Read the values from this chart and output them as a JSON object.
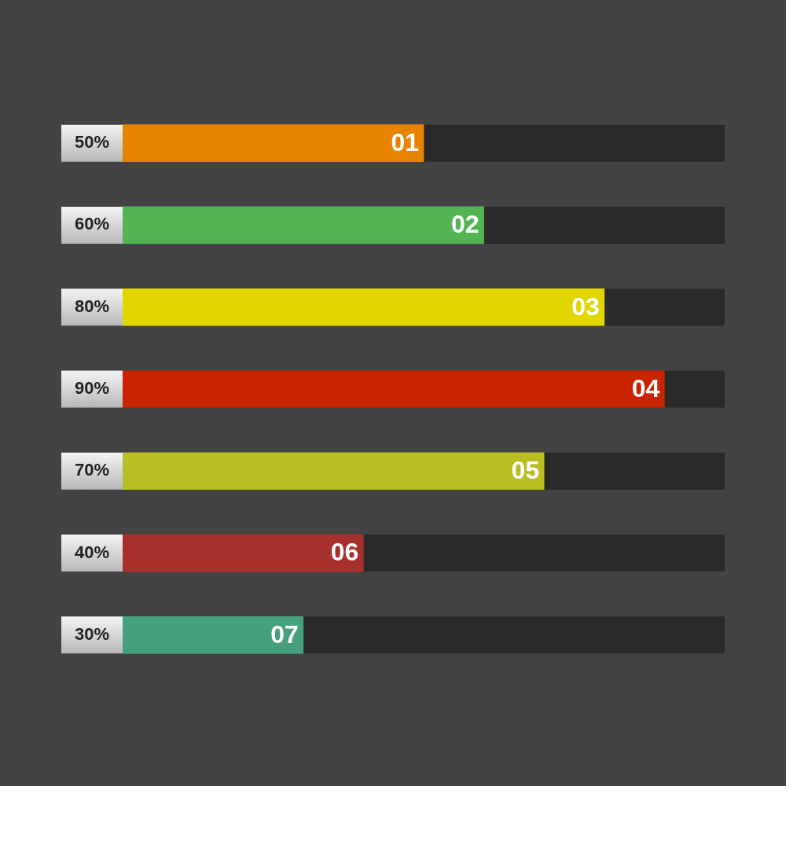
{
  "chart_data": {
    "type": "bar",
    "orientation": "horizontal",
    "categories": [
      "01",
      "02",
      "03",
      "04",
      "05",
      "06",
      "07"
    ],
    "values": [
      50,
      60,
      80,
      90,
      70,
      40,
      30
    ],
    "value_labels": [
      "50%",
      "60%",
      "80%",
      "90%",
      "70%",
      "40%",
      "30%"
    ],
    "colors": [
      "#e88300",
      "#52b552",
      "#e2d600",
      "#c92300",
      "#b9bf22",
      "#a8302c",
      "#45a07d"
    ],
    "xlim": [
      0,
      100
    ],
    "tick_labels": false,
    "legend": false
  }
}
